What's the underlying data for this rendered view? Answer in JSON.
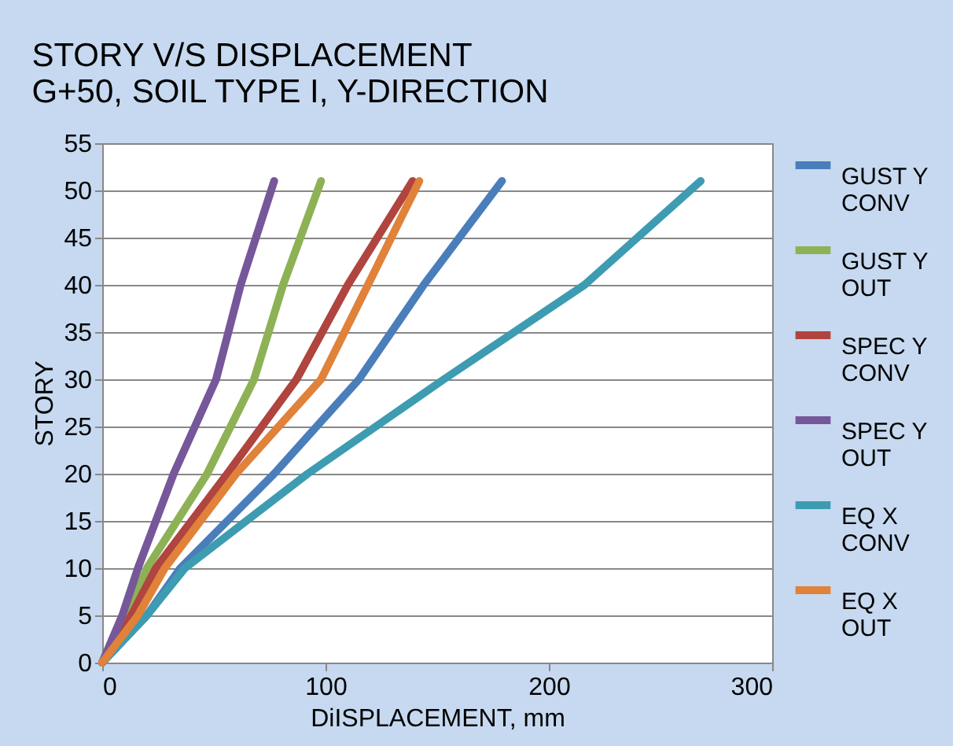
{
  "chart_data": {
    "type": "line",
    "title": "STORY V/S DISPLACEMENT",
    "subtitle": "G+50, SOIL TYPE I, Y-DIRECTION",
    "xlabel": "DiISPLACEMENT, mm",
    "ylabel": "STORY",
    "xlim": [
      0,
      300
    ],
    "xticks": [
      0,
      100,
      200,
      300
    ],
    "ylim": [
      0,
      55
    ],
    "yticks": [
      0,
      5,
      10,
      15,
      20,
      25,
      30,
      35,
      40,
      45,
      50,
      55
    ],
    "grid": "y",
    "legend": "right",
    "marker": "none",
    "line_style": "solid",
    "series": [
      {
        "name": "GUST Y CONV",
        "color": "#4a7ebb",
        "x": [
          0,
          20,
          35,
          77,
          115,
          144,
          179
        ],
        "values": [
          0,
          5,
          10,
          20,
          30,
          40,
          51
        ]
      },
      {
        "name": "GUST Y OUT",
        "color": "#8db255",
        "x": [
          0,
          11,
          20,
          47,
          68,
          81,
          98
        ],
        "values": [
          0,
          5,
          10,
          20,
          30,
          40,
          51
        ]
      },
      {
        "name": "SPEC Y CONV",
        "color": "#b0443f",
        "x": [
          0,
          13,
          24,
          56,
          87,
          110,
          139
        ],
        "values": [
          0,
          5,
          10,
          20,
          30,
          40,
          51
        ]
      },
      {
        "name": "SPEC Y OUT",
        "color": "#76579a",
        "x": [
          0,
          9,
          16,
          32,
          51,
          62,
          77
        ],
        "values": [
          0,
          5,
          10,
          20,
          30,
          40,
          51
        ]
      },
      {
        "name": "EQ X CONV",
        "color": "#3d9cb1",
        "x": [
          0,
          20,
          37,
          92,
          153,
          216,
          268
        ],
        "values": [
          0,
          5,
          10,
          20,
          30,
          40,
          51
        ]
      },
      {
        "name": "EQ X OUT",
        "color": "#e0823a",
        "x": [
          0,
          16,
          28,
          60,
          98,
          119,
          142
        ],
        "values": [
          0,
          5,
          10,
          20,
          30,
          40,
          51
        ]
      }
    ]
  }
}
